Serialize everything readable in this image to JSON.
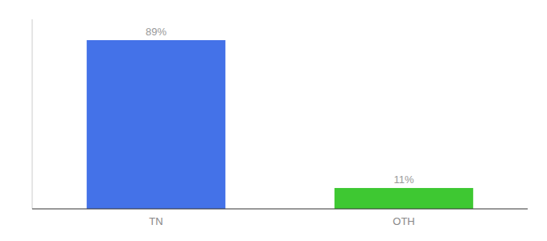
{
  "chart_data": {
    "type": "bar",
    "categories": [
      "TN",
      "OTH"
    ],
    "values": [
      89,
      11
    ],
    "value_labels": [
      "89%",
      "11%"
    ],
    "colors": [
      "#4472e8",
      "#3ec832"
    ],
    "ylim": [
      0,
      100
    ],
    "yticks": [],
    "data_labels": true,
    "tick_labels": "x",
    "grid": false
  }
}
